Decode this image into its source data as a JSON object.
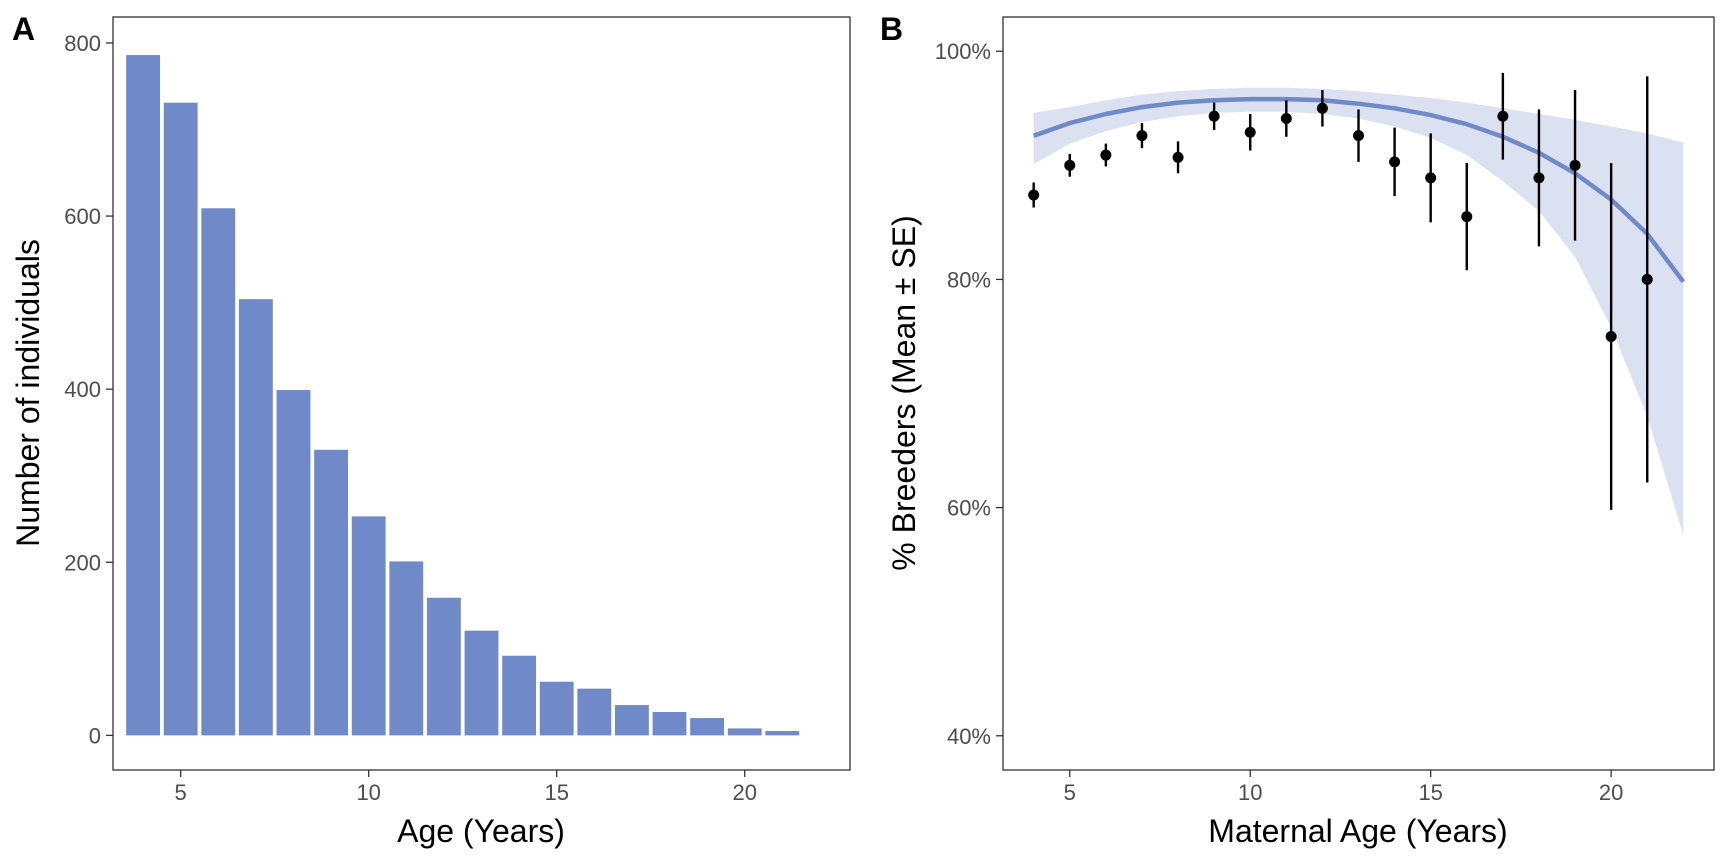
{
  "chart_data": [
    {
      "panel": "A",
      "type": "bar",
      "xlabel": "Age (Years)",
      "ylabel": "Number of individuals",
      "xlim": [
        3.2,
        22.8
      ],
      "ylim": [
        -40,
        830
      ],
      "x_ticks": [
        5,
        10,
        15,
        20
      ],
      "y_ticks": [
        0,
        200,
        400,
        600,
        800
      ],
      "grid": false,
      "bar_color": "#6f89c9",
      "x": [
        4,
        5,
        6,
        7,
        8,
        9,
        10,
        11,
        12,
        13,
        14,
        15,
        16,
        17,
        18,
        19,
        20,
        21
      ],
      "values": [
        786,
        731,
        609,
        504,
        399,
        330,
        253,
        201,
        159,
        121,
        92,
        62,
        54,
        35,
        27,
        20,
        8,
        5
      ]
    },
    {
      "panel": "B",
      "type": "scatter",
      "xlabel": "Maternal Age (Years)",
      "ylabel": "% Breeders (Mean ± SE)",
      "xlim": [
        3.15,
        22.85
      ],
      "ylim": [
        0.37,
        1.03
      ],
      "x_ticks": [
        5,
        10,
        15,
        20
      ],
      "y_ticks": [
        0.4,
        0.6,
        0.8,
        1.0
      ],
      "y_tick_format": "percent",
      "grid": false,
      "point_color": "#000000",
      "fit_color": "#6f89c9",
      "ribbon_color": "#dce1f2",
      "points": {
        "x": [
          4,
          5,
          6,
          7,
          8,
          9,
          10,
          11,
          12,
          13,
          14,
          15,
          16,
          17,
          18,
          19,
          20,
          21
        ],
        "mean": [
          0.874,
          0.9,
          0.909,
          0.926,
          0.907,
          0.943,
          0.929,
          0.941,
          0.95,
          0.926,
          0.903,
          0.889,
          0.855,
          0.943,
          0.889,
          0.9,
          0.75,
          0.8
        ],
        "lower": [
          0.863,
          0.89,
          0.899,
          0.915,
          0.893,
          0.931,
          0.913,
          0.925,
          0.934,
          0.903,
          0.873,
          0.85,
          0.808,
          0.905,
          0.829,
          0.834,
          0.598,
          0.622
        ],
        "upper": [
          0.885,
          0.91,
          0.919,
          0.937,
          0.921,
          0.955,
          0.945,
          0.957,
          0.966,
          0.949,
          0.933,
          0.928,
          0.902,
          0.981,
          0.949,
          0.966,
          0.902,
          0.978
        ]
      },
      "fit": {
        "x": [
          4,
          5,
          6,
          7,
          8,
          9,
          10,
          11,
          12,
          13,
          14,
          15,
          16,
          17,
          18,
          19,
          20,
          21,
          22
        ],
        "y": [
          0.926,
          0.937,
          0.945,
          0.951,
          0.955,
          0.957,
          0.958,
          0.958,
          0.957,
          0.954,
          0.95,
          0.944,
          0.936,
          0.925,
          0.911,
          0.893,
          0.87,
          0.84,
          0.798
        ],
        "lower": [
          0.901,
          0.919,
          0.93,
          0.938,
          0.943,
          0.946,
          0.947,
          0.947,
          0.945,
          0.941,
          0.934,
          0.924,
          0.909,
          0.886,
          0.86,
          0.82,
          0.758,
          0.68,
          0.576
        ],
        "upper": [
          0.946,
          0.951,
          0.957,
          0.962,
          0.965,
          0.967,
          0.968,
          0.968,
          0.967,
          0.965,
          0.962,
          0.959,
          0.955,
          0.95,
          0.945,
          0.94,
          0.934,
          0.928,
          0.92
        ]
      }
    }
  ]
}
